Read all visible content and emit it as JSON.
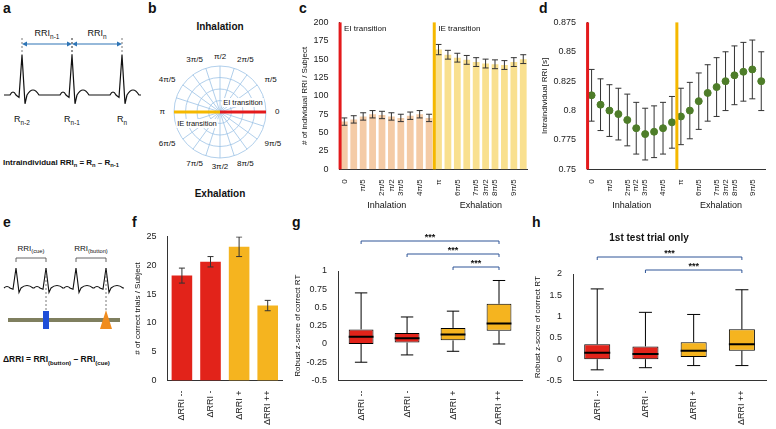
{
  "chart_data": [
    {
      "panel": "c",
      "type": "bar",
      "categories": [
        "0",
        null,
        "π/5",
        null,
        "2π/5",
        "π/2",
        "3π/5",
        null,
        "4π/5",
        null,
        "π",
        null,
        "6π/5",
        null,
        "7π/5",
        "3π/2",
        "8π/5",
        null,
        "9π/5",
        null
      ],
      "values": [
        65,
        68,
        72,
        75,
        74,
        72,
        70,
        73,
        75,
        70,
        163,
        156,
        152,
        149,
        146,
        144,
        143,
        142,
        146,
        150
      ],
      "errors": [
        5,
        5,
        5,
        5,
        5,
        5,
        5,
        5,
        5,
        5,
        7,
        6,
        6,
        6,
        6,
        6,
        6,
        6,
        6,
        6
      ],
      "colors": [
        "#f4cba6",
        "#f4cba6",
        "#f4cba6",
        "#f4cba6",
        "#f4cba6",
        "#f4cba6",
        "#f4cba6",
        "#f4cba6",
        "#f4cba6",
        "#f4cba6",
        "#f9e08f",
        "#f9e08f",
        "#f9e08f",
        "#f9e08f",
        "#f9e08f",
        "#f9e08f",
        "#f9e08f",
        "#f9e08f",
        "#f9e08f",
        "#f9e08f"
      ],
      "ylim": [
        0,
        200
      ],
      "yticks": [
        0,
        25,
        50,
        75,
        100,
        125,
        150,
        175,
        200
      ],
      "y_label": "# of individual RRI / Subject",
      "grid": false,
      "groups": [
        {
          "label": "Inhalation",
          "start": "0"
        },
        {
          "label": "Exhalation",
          "start": "π"
        }
      ],
      "annotations": [
        {
          "text": "EI transition",
          "at": "0",
          "color": "#e31a1c"
        },
        {
          "text": "IE transition",
          "at": "π",
          "color": "#f5b800"
        }
      ]
    },
    {
      "panel": "d",
      "type": "line",
      "marker": "circle",
      "line_style": "none",
      "color": "#4e7d29",
      "categories": [
        "0",
        null,
        "π/5",
        null,
        "2π/5",
        "π/2",
        "3π/5",
        null,
        "4π/5",
        null,
        "π",
        null,
        "6π/5",
        null,
        "7π/5",
        "3π/2",
        "8π/5",
        null,
        "9π/5",
        null
      ],
      "values": [
        0.813,
        0.805,
        0.8,
        0.797,
        0.792,
        0.785,
        0.78,
        0.782,
        0.785,
        0.79,
        0.795,
        0.8,
        0.808,
        0.815,
        0.82,
        0.825,
        0.83,
        0.833,
        0.835,
        0.825
      ],
      "errors": [
        0.022,
        0.022,
        0.022,
        0.022,
        0.022,
        0.022,
        0.022,
        0.022,
        0.022,
        0.022,
        0.024,
        0.024,
        0.024,
        0.024,
        0.025,
        0.025,
        0.025,
        0.025,
        0.025,
        0.025
      ],
      "ylim": [
        0.75,
        0.875
      ],
      "yticks": [
        0.75,
        0.775,
        0.8,
        0.825,
        0.85,
        0.875
      ],
      "y_label": "Intraindividual RRI [s]",
      "grid": false,
      "groups": [
        {
          "label": "Inhalation",
          "start": "0"
        },
        {
          "label": "Exhalation",
          "start": "π"
        }
      ],
      "annotations": [
        {
          "at": "0",
          "color": "#e31a1c"
        },
        {
          "at": "π",
          "color": "#f5b800"
        }
      ]
    },
    {
      "panel": "f",
      "type": "bar",
      "categories": [
        "ΔRRI --",
        "ΔRRI -",
        "ΔRRI +",
        "ΔRRI ++"
      ],
      "values": [
        18.2,
        20.6,
        23.2,
        13.0
      ],
      "errors": [
        1.3,
        0.9,
        1.7,
        0.9
      ],
      "colors": [
        "#e2231a",
        "#e2231a",
        "#f5b41f",
        "#f5b41f"
      ],
      "ylim": [
        0,
        25
      ],
      "yticks": [
        0,
        5,
        10,
        15,
        20,
        25
      ],
      "y_label": "# of correct trials / Subject",
      "grid": false
    },
    {
      "panel": "g",
      "type": "box",
      "categories": [
        "ΔRRI --",
        "ΔRRI -",
        "ΔRRI +",
        "ΔRRI ++"
      ],
      "boxes": [
        {
          "whisker_low": -0.25,
          "q1": 0.0,
          "median": 0.1,
          "q3": 0.2,
          "whisker_high": 0.7
        },
        {
          "whisker_low": -0.15,
          "q1": 0.02,
          "median": 0.08,
          "q3": 0.15,
          "whisker_high": 0.37
        },
        {
          "whisker_low": -0.1,
          "q1": 0.05,
          "median": 0.13,
          "q3": 0.22,
          "whisker_high": 0.45
        },
        {
          "whisker_low": 0.0,
          "q1": 0.18,
          "median": 0.28,
          "q3": 0.55,
          "whisker_high": 0.87
        }
      ],
      "colors": [
        "#e2231a",
        "#e2231a",
        "#f5b41f",
        "#f5b41f"
      ],
      "ylim": [
        -0.5,
        1
      ],
      "yticks": [
        -0.5,
        -0.25,
        0,
        0.25,
        0.5,
        0.75,
        1
      ],
      "y_label": "Robust z-score of correct RT",
      "grid": false,
      "annotations": [
        {
          "between": [
            "ΔRRI --",
            "ΔRRI ++"
          ],
          "text": "***"
        },
        {
          "between": [
            "ΔRRI -",
            "ΔRRI ++"
          ],
          "text": "***"
        },
        {
          "between": [
            "ΔRRI +",
            "ΔRRI ++"
          ],
          "text": "***"
        }
      ]
    },
    {
      "panel": "h",
      "type": "box",
      "title": "1st test trial only",
      "categories": [
        "ΔRRI --",
        "ΔRRI -",
        "ΔRRI +",
        "ΔRRI ++"
      ],
      "boxes": [
        {
          "whisker_low": -0.25,
          "q1": 0.0,
          "median": 0.15,
          "q3": 0.35,
          "whisker_high": 1.65
        },
        {
          "whisker_low": -0.2,
          "q1": 0.0,
          "median": 0.12,
          "q3": 0.3,
          "whisker_high": 1.1
        },
        {
          "whisker_low": -0.15,
          "q1": 0.05,
          "median": 0.2,
          "q3": 0.4,
          "whisker_high": 1.05
        },
        {
          "whisker_low": -0.15,
          "q1": 0.2,
          "median": 0.35,
          "q3": 0.7,
          "whisker_high": 1.63
        }
      ],
      "colors": [
        "#e2231a",
        "#e2231a",
        "#f5b41f",
        "#f5b41f"
      ],
      "ylim": [
        -0.5,
        2
      ],
      "yticks": [
        -0.5,
        0,
        0.5,
        1,
        1.5,
        2
      ],
      "y_label": "Robust z-score of correct RT",
      "grid": false,
      "annotations": [
        {
          "between": [
            "ΔRRI --",
            "ΔRRI ++"
          ],
          "text": "***"
        },
        {
          "between": [
            "ΔRRI -",
            "ΔRRI ++"
          ],
          "text": "***"
        }
      ]
    }
  ],
  "diagrams": [
    {
      "panel": "a",
      "intervals": [
        {
          "text": "RRI",
          "sub": "n-1"
        },
        {
          "text": "RRI",
          "sub": "n"
        }
      ],
      "peaks": [
        {
          "text": "R",
          "sub": "n-2"
        },
        {
          "text": "R",
          "sub": "n-1"
        },
        {
          "text": "R",
          "sub": "n"
        }
      ],
      "equation": [
        {
          "text": "Intraindividual RRI",
          "sub": "n"
        },
        {
          "text": " = R",
          "sub": "n"
        },
        {
          "text": " – R",
          "sub": "n-1"
        }
      ]
    },
    {
      "panel": "b",
      "phases": [
        "Inhalation",
        "Exhalation"
      ],
      "transitions": [
        {
          "text": "EI transition",
          "at": "0",
          "color": "#e31a1c"
        },
        {
          "text": "IE transition",
          "at": "π",
          "color": "#f5b800"
        }
      ],
      "angles": [
        {
          "label": "0",
          "value": 0
        },
        {
          "label": "π/5",
          "value": 0.2
        },
        {
          "label": "2π/5",
          "value": 0.4
        },
        {
          "label": "π/2",
          "value": 0.5
        },
        {
          "label": "3π/5",
          "value": 0.6
        },
        {
          "label": "4π/5",
          "value": 0.8
        },
        {
          "label": "π",
          "value": 1
        },
        {
          "label": "6π/5",
          "value": 1.2
        },
        {
          "label": "7π/5",
          "value": 1.4
        },
        {
          "label": "3π/2",
          "value": 1.5
        },
        {
          "label": "8π/5",
          "value": 1.6
        },
        {
          "label": "9π/5",
          "value": 1.8
        }
      ]
    },
    {
      "panel": "e",
      "intervals": [
        {
          "text": "RRI",
          "sub": "(cue)"
        },
        {
          "text": "RRI",
          "sub": "(button)"
        }
      ],
      "equation": [
        {
          "text": "ΔRRI = RRI",
          "sub": "(button)"
        },
        {
          "text": " – RRI",
          "sub": "(cue)"
        }
      ]
    }
  ]
}
